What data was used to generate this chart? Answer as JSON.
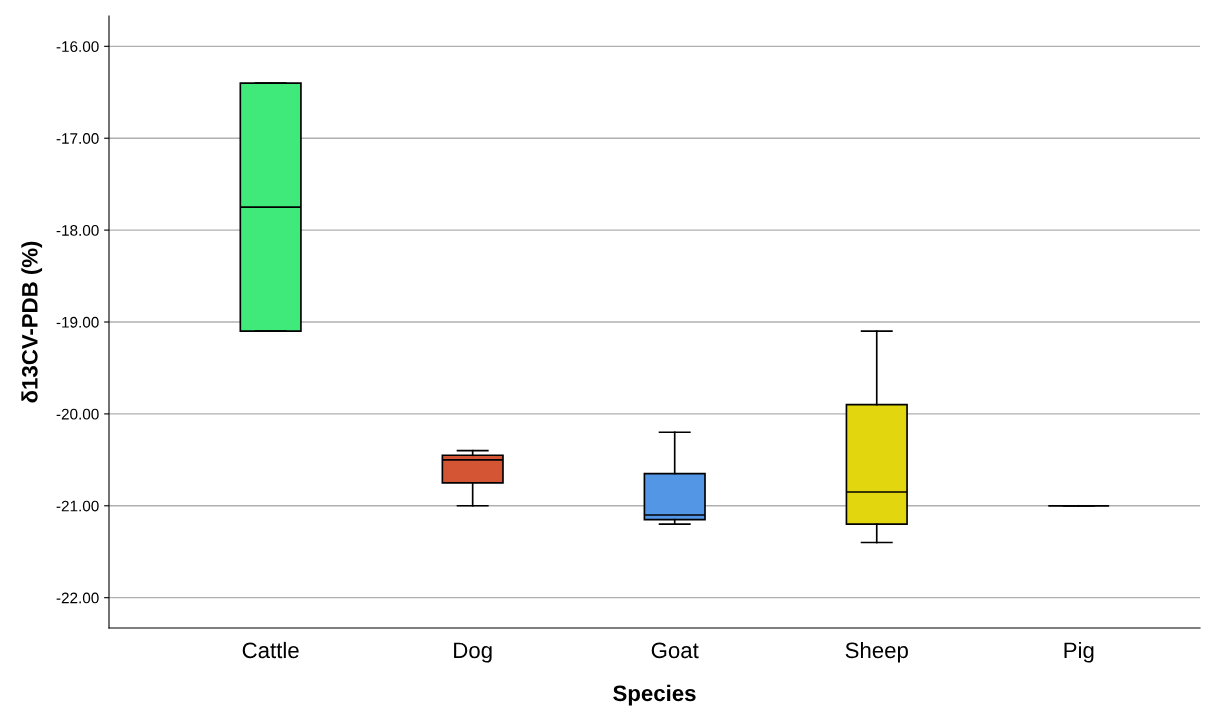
{
  "chart_data": {
    "type": "box",
    "xlabel": "Species",
    "ylabel": "δ13CV-PDB (%)",
    "categories": [
      "Cattle",
      "Dog",
      "Goat",
      "Sheep",
      "Pig"
    ],
    "colors": [
      "#3fea7b",
      "#d35534",
      "#5496e6",
      "#e2d60f",
      "#000000"
    ],
    "boxes": [
      {
        "low": -19.1,
        "q1": -19.1,
        "median": -17.75,
        "q3": -16.4,
        "high": -16.4
      },
      {
        "low": -21.0,
        "q1": -20.75,
        "median": -20.5,
        "q3": -20.45,
        "high": -20.4
      },
      {
        "low": -21.2,
        "q1": -21.15,
        "median": -21.1,
        "q3": -20.65,
        "high": -20.2
      },
      {
        "low": -21.4,
        "q1": -21.2,
        "median": -20.85,
        "q3": -19.9,
        "high": -19.1
      },
      {
        "low": -21.0,
        "q1": -21.0,
        "median": -21.0,
        "q3": -21.0,
        "high": -21.0
      }
    ],
    "ylim": [
      -22.33,
      -15.67
    ],
    "yticks": [
      {
        "value": -22,
        "label": "-22.00"
      },
      {
        "value": -21,
        "label": "-21.00"
      },
      {
        "value": -20,
        "label": "-20.00"
      },
      {
        "value": -19,
        "label": "-19.00"
      },
      {
        "value": -18,
        "label": "-18.00"
      },
      {
        "value": -17,
        "label": "-17.00"
      },
      {
        "value": -16,
        "label": "-16.00"
      }
    ],
    "grid": "y"
  }
}
